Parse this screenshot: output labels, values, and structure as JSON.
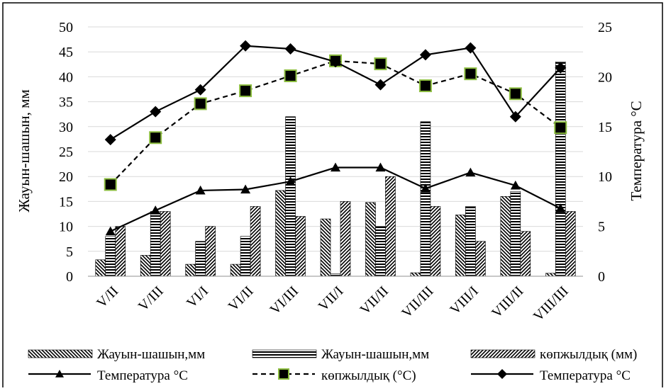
{
  "chart_data": {
    "type": "bar",
    "categories": [
      "V/II",
      "V/III",
      "VI/I",
      "VI/II",
      "VI/III",
      "VII/I",
      "VII/II",
      "VII/III",
      "VIII/I",
      "VIII/II",
      "VIII/III"
    ],
    "ylabel": "Жауын-шашын, мм",
    "y2label": "Температура °С",
    "ylim": [
      0,
      50
    ],
    "y2lim": [
      0,
      25
    ],
    "yticks": [
      0,
      5,
      10,
      15,
      20,
      25,
      30,
      35,
      40,
      45,
      50
    ],
    "y2ticks": [
      0,
      5,
      10,
      15,
      20,
      25
    ],
    "grid": true,
    "legend_position": "bottom",
    "bar_series": [
      {
        "name": "Жауын-шашын,мм",
        "pattern": "diagonal-hatch-down",
        "values": [
          3.3,
          4.2,
          2.4,
          2.4,
          17.2,
          11.5,
          14.8,
          0.7,
          12.3,
          16.0,
          0.6
        ]
      },
      {
        "name": "Жауын-шашын,мм",
        "pattern": "horizontal-stripes",
        "values": [
          8.0,
          13.0,
          7.0,
          8.0,
          32.0,
          0.5,
          10.0,
          31.0,
          14.0,
          17.0,
          43.0
        ]
      },
      {
        "name": "көпжылдық (мм)",
        "pattern": "diagonal-hatch-up",
        "values": [
          10.0,
          13.0,
          10.0,
          14.0,
          12.0,
          15.0,
          20.0,
          14.0,
          7.0,
          9.0,
          13.0
        ]
      }
    ],
    "line_series": [
      {
        "name": "Температура °С",
        "axis": "right",
        "marker": "triangle",
        "dash": "solid",
        "values": [
          4.5,
          6.6,
          8.6,
          8.7,
          9.5,
          10.9,
          10.9,
          8.8,
          10.4,
          9.1,
          6.8
        ]
      },
      {
        "name": "көпжылдық (°С)",
        "axis": "right",
        "marker": "square",
        "dash": "dashed",
        "values": [
          9.2,
          13.9,
          17.3,
          18.6,
          20.1,
          21.6,
          21.3,
          19.1,
          20.3,
          18.3,
          14.9
        ]
      },
      {
        "name": "Температура °С",
        "axis": "right",
        "marker": "diamond",
        "dash": "solid",
        "values": [
          13.7,
          16.5,
          18.7,
          23.1,
          22.8,
          21.5,
          19.2,
          22.2,
          22.9,
          16.0,
          20.9
        ]
      }
    ]
  },
  "colors": {
    "axis": "#000000",
    "grid": "#d9d9d9",
    "marker_square_fill": "#000000",
    "marker_square_edge": "#8cbd3f"
  }
}
